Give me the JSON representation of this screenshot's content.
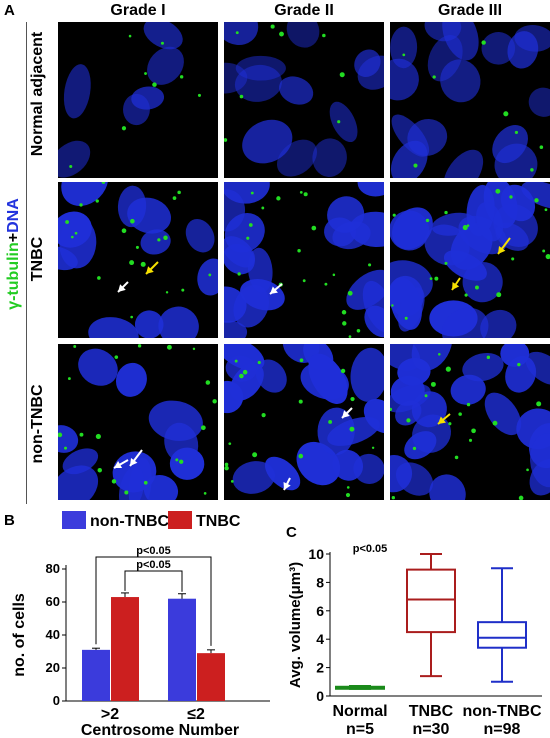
{
  "panels": {
    "a": "A",
    "b": "B",
    "c": "C"
  },
  "panelA": {
    "columns": [
      "Grade I",
      "Grade II",
      "Grade III"
    ],
    "rows": [
      "Normal adjacent",
      "TNBC",
      "non-TNBC"
    ],
    "stain_label": {
      "part1": "γ-tubulin",
      "part2": "+",
      "part3": "DNA"
    },
    "colors": {
      "stain": "#22dd22",
      "dna": "#2233ee",
      "arrow_white": "#ffffff",
      "arrow_yellow": "#f5e000"
    }
  },
  "chart_data": [
    {
      "type": "bar",
      "panel": "B",
      "categories": [
        ">2",
        "≤2"
      ],
      "series": [
        {
          "name": "non-TNBC",
          "color": "#3b3bdc",
          "values": [
            31,
            62
          ],
          "errors": [
            1,
            3
          ]
        },
        {
          "name": "TNBC",
          "color": "#cc1f1f",
          "values": [
            63,
            29
          ],
          "errors": [
            2.5,
            2
          ]
        }
      ],
      "xlabel": "Centrosome Number",
      "ylabel": "no. of cells",
      "ylim": [
        0,
        80
      ],
      "yticks": [
        "0",
        "20",
        "40",
        "60",
        "80"
      ],
      "annotations": [
        "p<0.05",
        "p<0.05"
      ],
      "legend": "top"
    },
    {
      "type": "box",
      "panel": "C",
      "categories": [
        "Normal",
        "TNBC",
        "non-TNBC"
      ],
      "sublabels": [
        "n=5",
        "n=30",
        "n=98"
      ],
      "colors": [
        "#1a8a1a",
        "#aa1d1d",
        "#1f2fc8"
      ],
      "boxes": [
        {
          "min": 0.5,
          "q1": 0.55,
          "median": 0.6,
          "q3": 0.65,
          "max": 0.7
        },
        {
          "min": 1.4,
          "q1": 4.5,
          "median": 6.8,
          "q3": 8.9,
          "max": 10.0
        },
        {
          "min": 1.0,
          "q1": 3.4,
          "median": 4.1,
          "q3": 5.2,
          "max": 9.0
        }
      ],
      "ylabel": "Avg. volume(μm³)",
      "ylim": [
        0,
        10
      ],
      "yticks": [
        "0",
        "2",
        "4",
        "6",
        "8",
        "10"
      ],
      "annotations": [
        "p<0.05"
      ]
    }
  ]
}
